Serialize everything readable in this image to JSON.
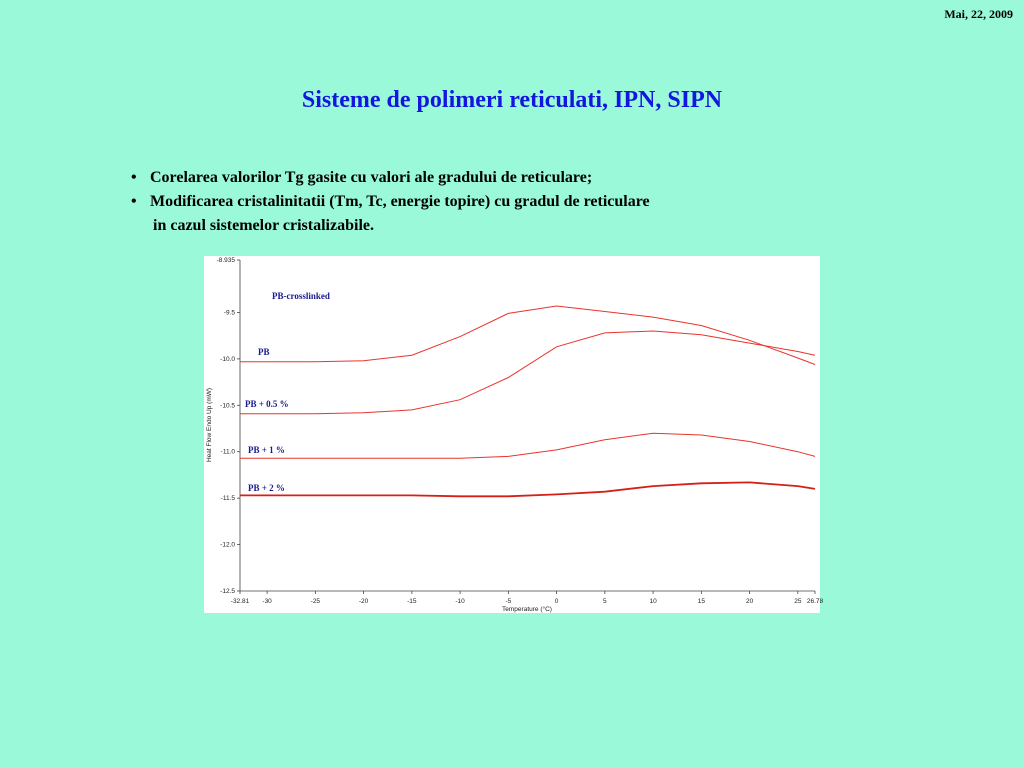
{
  "date": "Mai, 22, 2009",
  "title": "Sisteme de polimeri reticulati, IPN, SIPN",
  "text_lines": [
    "Corelarea valorilor Tg gasite cu valori ale  gradului de reticulare;",
    "Modificarea cristalinitatii  (Tm, Tc, energie topire) cu gradul de reticulare",
    "in cazul sistemelor cristalizabile."
  ],
  "chart_data": {
    "type": "line",
    "annotation": "PB-crosslinked",
    "xlabel": "Temperature (°C)",
    "ylabel": "Heat Flow Endo Up (mW)",
    "x": [
      -32.81,
      -30,
      -25,
      -20,
      -15,
      -10,
      -5,
      0,
      5,
      10,
      15,
      20,
      25,
      26.78
    ],
    "xlim": [
      -32.81,
      26.78
    ],
    "xticks": [
      -32.81,
      -30,
      -25,
      -20,
      -15,
      -10,
      -5,
      0,
      5,
      10,
      15,
      20,
      25,
      26.78
    ],
    "ylim": [
      -12.5,
      -8.935
    ],
    "yticks": [
      -8.935,
      -9.5,
      {
        "value": -10,
        "label": "-10.0"
      },
      -10.5,
      {
        "value": -11,
        "label": "-11.0"
      },
      -11.5,
      {
        "value": -12,
        "label": "-12.0"
      },
      -12.5
    ],
    "series": [
      {
        "name": "PB",
        "color": "#e8342c",
        "values": [
          -10.03,
          -10.03,
          -10.03,
          -10.02,
          -9.96,
          -9.76,
          -9.51,
          -9.43,
          -9.49,
          -9.55,
          -9.64,
          -9.8,
          -9.99,
          -10.06
        ]
      },
      {
        "name": "PB + 0.5 %",
        "color": "#e8342c",
        "values": [
          -10.59,
          -10.59,
          -10.59,
          -10.58,
          -10.55,
          -10.44,
          -10.2,
          -9.87,
          -9.72,
          -9.7,
          -9.74,
          -9.83,
          -9.92,
          -9.96
        ]
      },
      {
        "name": "PB + 1 %",
        "color": "#e8342c",
        "values": [
          -11.07,
          -11.07,
          -11.07,
          -11.07,
          -11.07,
          -11.07,
          -11.05,
          -10.98,
          -10.87,
          -10.8,
          -10.82,
          -10.89,
          -11.0,
          -11.05
        ]
      },
      {
        "name": "PB + 2 %",
        "color": "#d42018",
        "values": [
          -11.47,
          -11.47,
          -11.47,
          -11.47,
          -11.47,
          -11.48,
          -11.48,
          -11.46,
          -11.43,
          -11.37,
          -11.34,
          -11.33,
          -11.37,
          -11.4
        ]
      }
    ]
  }
}
